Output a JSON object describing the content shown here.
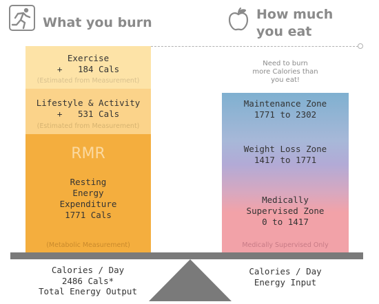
{
  "left": {
    "heading": "What you burn",
    "exercise": {
      "title": "Exercise",
      "value": "+   184 Cals",
      "note": "(Estimated from Measurement)"
    },
    "lifestyle": {
      "title": "Lifestyle & Activity",
      "value": "+   531 Cals",
      "note": "(Estimated from Measurement)"
    },
    "rmr": {
      "abbr": "RMR",
      "line1": "Resting",
      "line2": "Energy",
      "line3": "Expenditure",
      "value": "1771 Cals",
      "note": "(Metabolic Measurement)"
    },
    "footer": {
      "line1": "Calories / Day",
      "line2": "2486 Cals*",
      "line3": "Total Energy Output"
    }
  },
  "right": {
    "heading_line1": "How much",
    "heading_line2": "you eat",
    "caption": {
      "line1": "Need to burn",
      "line2": "more Calories than",
      "line3": "you eat!"
    },
    "maintenance": {
      "title": "Maintenance Zone",
      "range": "1771 to 2302"
    },
    "weight_loss": {
      "title": "Weight Loss Zone",
      "range": "1417 to 1771"
    },
    "medical": {
      "line1": "Medically",
      "line2": "Supervised Zone",
      "range": "0 to 1417",
      "note": "Medically Supervised Only"
    },
    "footer": {
      "line1": "Calories / Day",
      "line2": "Energy Input"
    }
  },
  "icons": {
    "left": "runner-icon",
    "right": "apple-icon"
  },
  "colors": {
    "exercise": "#fde3a7",
    "lifestyle": "#fbd38a",
    "rmr": "#f4ae3e",
    "maintenance_top": "#7fb0d0",
    "weight_loss": "#b2aad6",
    "medical": "#f2a2a8",
    "scale": "#7a7a7a"
  }
}
